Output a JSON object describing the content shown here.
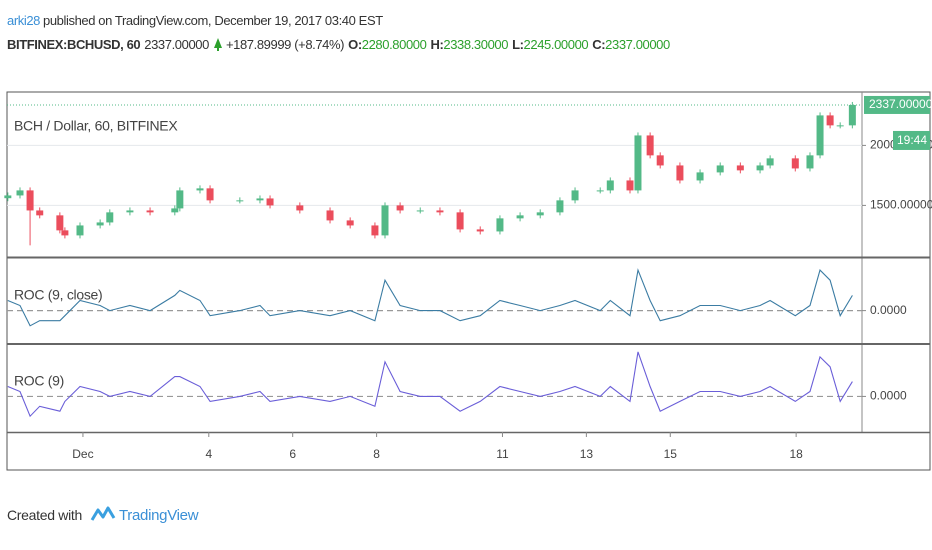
{
  "header": {
    "author": "arki28",
    "published": "published on TradingView.com, December 19, 2017 03:40 EST"
  },
  "symbol": {
    "name": "BITFINEX:BCHUSD, 60",
    "last": "2337.00000",
    "change": "+187.89999 (+8.74%)",
    "open_label": "O:",
    "open": "2280.80000",
    "high_label": "H:",
    "high": "2338.30000",
    "low_label": "L:",
    "low": "2245.00000",
    "close_label": "C:",
    "close": "2337.00000"
  },
  "chart_data": [
    {
      "type": "candlestick",
      "title": "BCH / Dollar, 60, BITFINEX",
      "up_color": "#53b987",
      "down_color": "#eb4d5c",
      "xlim": [
        -0.81,
        19.57
      ],
      "ylim": [
        1070,
        2445
      ],
      "yticks": [
        {
          "value": 2000,
          "label": "2000.00000"
        },
        {
          "value": 1500,
          "label": "1500.00000"
        }
      ],
      "last_price": {
        "value": 2337,
        "label": "2337.00000"
      },
      "countdown": "19:44",
      "x": [
        -0.79,
        -0.5,
        -0.26,
        -0.03,
        0.45,
        0.57,
        0.93,
        1.41,
        1.64,
        2.12,
        2.6,
        3.19,
        3.31,
        3.79,
        4.03,
        4.74,
        5.22,
        5.46,
        6.17,
        6.89,
        7.37,
        7.96,
        8.2,
        8.56,
        9.04,
        9.51,
        9.99,
        10.47,
        10.94,
        11.42,
        11.9,
        12.37,
        12.73,
        13.33,
        13.57,
        14.04,
        14.23,
        14.52,
        14.76,
        15.23,
        15.71,
        16.19,
        16.67,
        17.14,
        17.38,
        17.98,
        18.33,
        18.57,
        18.81,
        19.05,
        19.34
      ],
      "open": [
        1560,
        1583,
        1625,
        1458,
        1417,
        1292,
        1250,
        1333,
        1358,
        1442,
        1458,
        1442,
        1475,
        1625,
        1642,
        1542,
        1542,
        1558,
        1500,
        1458,
        1375,
        1333,
        1250,
        1500,
        1458,
        1458,
        1442,
        1300,
        1283,
        1392,
        1417,
        1442,
        1542,
        1625,
        1625,
        1708,
        1625,
        2083,
        1917,
        1833,
        1708,
        1775,
        1833,
        1792,
        1833,
        1892,
        1808,
        1917,
        2250,
        2167,
        2167
      ],
      "high": [
        1608,
        1650,
        1650,
        1483,
        1442,
        1317,
        1358,
        1383,
        1467,
        1483,
        1483,
        1500,
        1650,
        1667,
        1667,
        1567,
        1583,
        1583,
        1525,
        1483,
        1400,
        1358,
        1525,
        1525,
        1483,
        1483,
        1467,
        1325,
        1417,
        1442,
        1467,
        1567,
        1650,
        1650,
        1733,
        1733,
        2108,
        2108,
        1942,
        1858,
        1800,
        1858,
        1858,
        1858,
        1917,
        1917,
        1942,
        2275,
        2275,
        2192,
        2362
      ],
      "low": [
        1535,
        1558,
        1167,
        1392,
        1267,
        1225,
        1225,
        1308,
        1333,
        1417,
        1417,
        1417,
        1450,
        1600,
        1517,
        1517,
        1517,
        1475,
        1433,
        1350,
        1308,
        1225,
        1225,
        1433,
        1433,
        1417,
        1275,
        1258,
        1258,
        1367,
        1392,
        1417,
        1517,
        1600,
        1600,
        1600,
        1600,
        1892,
        1808,
        1683,
        1683,
        1750,
        1767,
        1767,
        1808,
        1783,
        1783,
        1892,
        2142,
        2142,
        2142
      ],
      "close": [
        1583,
        1625,
        1458,
        1417,
        1292,
        1250,
        1333,
        1358,
        1442,
        1458,
        1442,
        1475,
        1625,
        1642,
        1542,
        1542,
        1558,
        1500,
        1458,
        1375,
        1333,
        1250,
        1500,
        1458,
        1458,
        1442,
        1300,
        1283,
        1392,
        1417,
        1442,
        1542,
        1625,
        1625,
        1708,
        1625,
        2083,
        1917,
        1833,
        1708,
        1775,
        1833,
        1792,
        1833,
        1892,
        1808,
        1917,
        2250,
        2167,
        2167,
        2337
      ]
    },
    {
      "type": "line",
      "title": "ROC (9, close)",
      "xlim": [
        -0.81,
        19.57
      ],
      "ylim": [
        -6.4,
        10
      ],
      "yticks": [
        {
          "value": 0,
          "label": "0.0000"
        }
      ],
      "x": [
        -0.79,
        -0.5,
        -0.26,
        -0.03,
        0.45,
        0.57,
        0.93,
        1.41,
        1.64,
        2.12,
        2.6,
        3.19,
        3.31,
        3.79,
        4.03,
        4.74,
        5.22,
        5.46,
        6.17,
        6.89,
        7.37,
        7.96,
        8.2,
        8.56,
        9.04,
        9.51,
        9.99,
        10.47,
        10.94,
        11.42,
        11.9,
        12.37,
        12.73,
        13.33,
        13.57,
        14.04,
        14.23,
        14.52,
        14.76,
        15.23,
        15.71,
        16.19,
        16.67,
        17.14,
        17.38,
        17.98,
        18.33,
        18.57,
        18.81,
        19.05,
        19.34
      ],
      "series": [
        {
          "color": "#3b7ca3",
          "values": [
            2,
            1,
            -3,
            -2,
            -2,
            -1,
            2,
            1,
            0,
            1,
            0,
            3,
            4,
            2,
            -1,
            0,
            1,
            -1,
            0,
            -1,
            0,
            -2,
            6,
            1,
            0,
            0,
            -2,
            -1,
            2,
            1,
            0,
            1,
            2,
            0,
            2,
            -1,
            8,
            2,
            -2,
            -1,
            1,
            1,
            0,
            1,
            2,
            -1,
            1,
            8,
            6,
            -1,
            3
          ]
        }
      ]
    },
    {
      "type": "line",
      "title": "ROC (9)",
      "xlim": [
        -0.81,
        19.57
      ],
      "ylim": [
        -7.2,
        10.2
      ],
      "yticks": [
        {
          "value": 0,
          "label": "0.0000"
        }
      ],
      "xticks": [
        {
          "value": 1,
          "label": "Dec"
        },
        4,
        6,
        8,
        11,
        13,
        15,
        18
      ],
      "x": [
        -0.79,
        -0.5,
        -0.26,
        -0.03,
        0.45,
        0.57,
        0.93,
        1.41,
        1.64,
        2.12,
        2.6,
        3.19,
        3.31,
        3.79,
        4.03,
        4.74,
        5.22,
        5.46,
        6.17,
        6.89,
        7.37,
        7.96,
        8.2,
        8.56,
        9.04,
        9.51,
        9.99,
        10.47,
        10.94,
        11.42,
        11.9,
        12.37,
        12.73,
        13.33,
        13.57,
        14.04,
        14.23,
        14.52,
        14.76,
        15.23,
        15.71,
        16.19,
        16.67,
        17.14,
        17.38,
        17.98,
        18.33,
        18.57,
        18.81,
        19.05,
        19.34
      ],
      "series": [
        {
          "color": "#6a5ed8",
          "values": [
            2,
            1,
            -4,
            -2,
            -3,
            -1,
            2,
            1,
            0,
            1,
            0,
            4,
            4,
            2,
            -1,
            0,
            1,
            -1,
            0,
            -1,
            0,
            -2,
            7,
            1,
            0,
            0,
            -3,
            -1,
            2,
            1,
            0,
            1,
            2,
            0,
            2,
            -1,
            9,
            2,
            -3,
            -1,
            1,
            1,
            0,
            1,
            2,
            -1,
            1,
            8,
            6,
            -1,
            3
          ]
        }
      ]
    }
  ],
  "footer": {
    "created": "Created with",
    "brand": "TradingView"
  }
}
